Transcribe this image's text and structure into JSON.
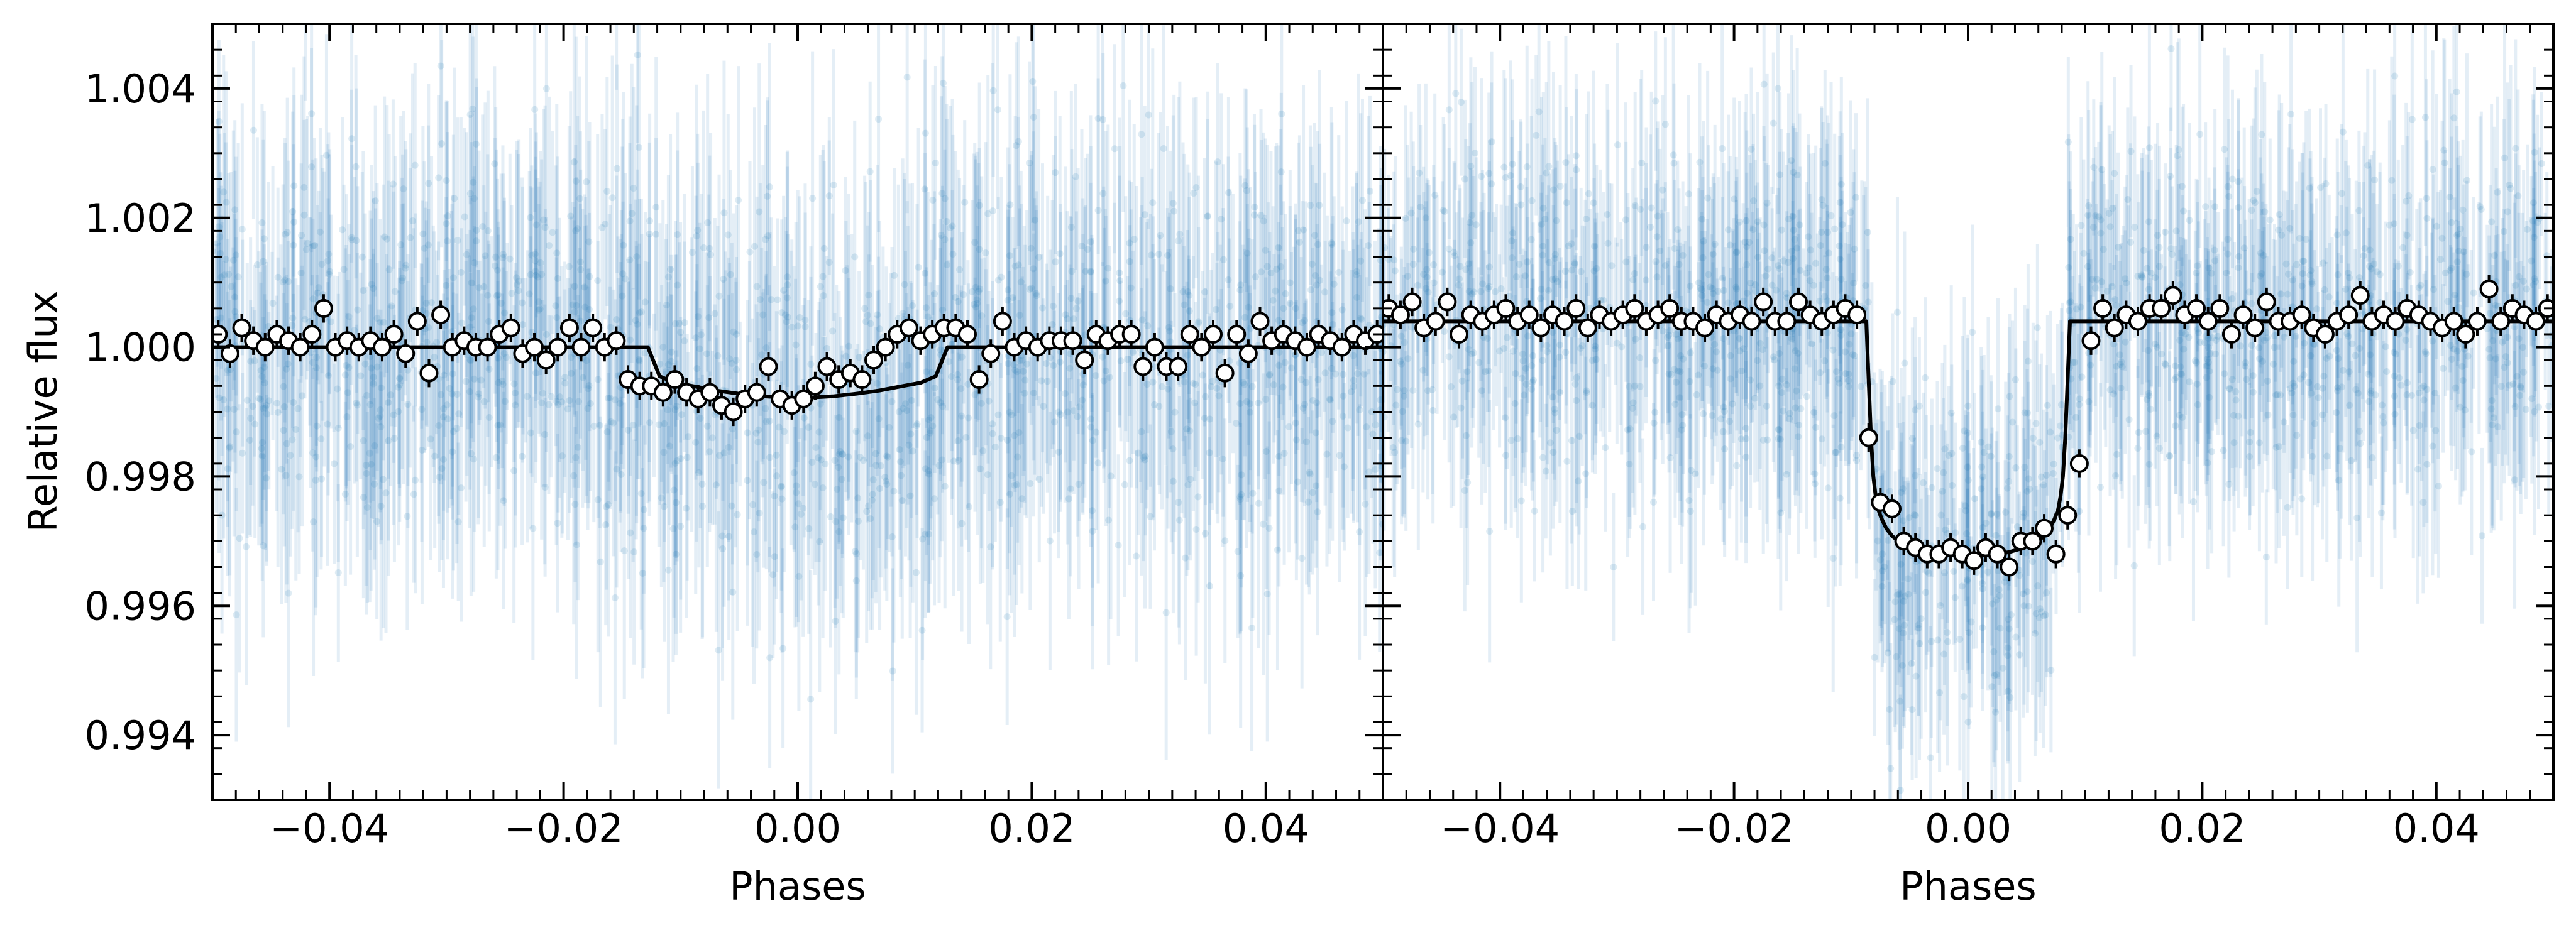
{
  "chart_data": [
    {
      "type": "scatter",
      "panel": "left",
      "xlabel": "Phases",
      "ylabel": "Relative flux",
      "xlim": [
        -0.05,
        0.05
      ],
      "ylim": [
        0.993,
        1.005
      ],
      "x_ticks": [
        -0.04,
        -0.02,
        0.0,
        0.02,
        0.04
      ],
      "x_tick_labels": [
        "−0.04",
        "−0.02",
        "0.00",
        "0.02",
        "0.04"
      ],
      "y_ticks": [
        0.994,
        0.996,
        0.998,
        1.0,
        1.002,
        1.004
      ],
      "y_tick_labels": [
        "0.994",
        "0.996",
        "0.998",
        "1.000",
        "1.002",
        "1.004"
      ],
      "grid": false,
      "raw_points": {
        "color": "#1f77b4",
        "x_range": [
          -0.05,
          0.05
        ],
        "scatter_sigma": 0.0015,
        "count": 1400
      },
      "binned_points": {
        "x": [
          -0.0495,
          -0.0485,
          -0.0475,
          -0.0465,
          -0.0455,
          -0.0445,
          -0.0435,
          -0.0425,
          -0.0415,
          -0.0405,
          -0.0395,
          -0.0385,
          -0.0375,
          -0.0365,
          -0.0355,
          -0.0345,
          -0.0335,
          -0.0325,
          -0.0315,
          -0.0305,
          -0.0295,
          -0.0285,
          -0.0275,
          -0.0265,
          -0.0255,
          -0.0245,
          -0.0235,
          -0.0225,
          -0.0215,
          -0.0205,
          -0.0195,
          -0.0185,
          -0.0175,
          -0.0165,
          -0.0155,
          -0.0145,
          -0.0135,
          -0.0125,
          -0.0115,
          -0.0105,
          -0.0095,
          -0.0085,
          -0.0075,
          -0.0065,
          -0.0055,
          -0.0045,
          -0.0035,
          -0.0025,
          -0.0015,
          -0.0005,
          0.0005,
          0.0015,
          0.0025,
          0.0035,
          0.0045,
          0.0055,
          0.0065,
          0.0075,
          0.0085,
          0.0095,
          0.0105,
          0.0115,
          0.0125,
          0.0135,
          0.0145,
          0.0155,
          0.0165,
          0.0175,
          0.0185,
          0.0195,
          0.0205,
          0.0215,
          0.0225,
          0.0235,
          0.0245,
          0.0255,
          0.0265,
          0.0275,
          0.0285,
          0.0295,
          0.0305,
          0.0315,
          0.0325,
          0.0335,
          0.0345,
          0.0355,
          0.0365,
          0.0375,
          0.0385,
          0.0395,
          0.0405,
          0.0415,
          0.0425,
          0.0435,
          0.0445,
          0.0455,
          0.0465,
          0.0475,
          0.0485,
          0.0495
        ],
        "y": [
          1.0002,
          0.9999,
          1.0003,
          1.0001,
          1.0,
          1.0002,
          1.0001,
          1.0,
          1.0002,
          1.0006,
          1.0,
          1.0001,
          1.0,
          1.0001,
          1.0,
          1.0002,
          0.9999,
          1.0004,
          0.9996,
          1.0005,
          1.0,
          1.0001,
          1.0,
          1.0,
          1.0002,
          1.0003,
          0.9999,
          1.0,
          0.9998,
          1.0,
          1.0003,
          1.0,
          1.0003,
          1.0,
          1.0001,
          0.9995,
          0.9994,
          0.9994,
          0.9993,
          0.9995,
          0.9993,
          0.9992,
          0.9993,
          0.9991,
          0.999,
          0.9992,
          0.9993,
          0.9997,
          0.9992,
          0.9991,
          0.9992,
          0.9994,
          0.9997,
          0.9995,
          0.9996,
          0.9995,
          0.9998,
          1.0,
          1.0002,
          1.0003,
          1.0001,
          1.0002,
          1.0003,
          1.0003,
          1.0002,
          0.9995,
          0.9999,
          1.0004,
          1.0,
          1.0001,
          1.0,
          1.0001,
          1.0001,
          1.0001,
          0.9998,
          1.0002,
          1.0001,
          1.0002,
          1.0002,
          0.9997,
          1.0,
          0.9997,
          0.9997,
          1.0002,
          1.0,
          1.0002,
          0.9996,
          1.0002,
          0.9999,
          1.0004,
          1.0001,
          1.0002,
          1.0001,
          1.0,
          1.0002,
          1.0001,
          1.0,
          1.0002,
          1.0001,
          1.0002
        ]
      },
      "model": {
        "x": [
          -0.05,
          -0.0128,
          -0.0118,
          -0.0105,
          -0.009,
          -0.007,
          -0.005,
          -0.003,
          -0.001,
          0.001,
          0.003,
          0.005,
          0.007,
          0.009,
          0.0105,
          0.0118,
          0.0128,
          0.05
        ],
        "y": [
          1.0,
          1.0,
          0.99955,
          0.99945,
          0.9994,
          0.99933,
          0.99928,
          0.99924,
          0.99922,
          0.99922,
          0.99924,
          0.99928,
          0.99933,
          0.9994,
          0.99945,
          0.99955,
          1.0,
          1.0
        ]
      }
    },
    {
      "type": "scatter",
      "panel": "right",
      "xlabel": "Phases",
      "ylabel": "",
      "xlim": [
        -0.05,
        0.05
      ],
      "ylim": [
        0.993,
        1.005
      ],
      "x_ticks": [
        -0.04,
        -0.02,
        0.0,
        0.02,
        0.04
      ],
      "x_tick_labels": [
        "−0.04",
        "−0.02",
        "0.00",
        "0.02",
        "0.04"
      ],
      "grid": false,
      "raw_points": {
        "color": "#1f77b4",
        "x_range": [
          -0.05,
          0.05
        ],
        "scatter_sigma": 0.0013,
        "count": 1400
      },
      "binned_points": {
        "x": [
          -0.0495,
          -0.0485,
          -0.0475,
          -0.0465,
          -0.0455,
          -0.0445,
          -0.0435,
          -0.0425,
          -0.0415,
          -0.0405,
          -0.0395,
          -0.0385,
          -0.0375,
          -0.0365,
          -0.0355,
          -0.0345,
          -0.0335,
          -0.0325,
          -0.0315,
          -0.0305,
          -0.0295,
          -0.0285,
          -0.0275,
          -0.0265,
          -0.0255,
          -0.0245,
          -0.0235,
          -0.0225,
          -0.0215,
          -0.0205,
          -0.0195,
          -0.0185,
          -0.0175,
          -0.0165,
          -0.0155,
          -0.0145,
          -0.0135,
          -0.0125,
          -0.0115,
          -0.0105,
          -0.0095,
          -0.0085,
          -0.0075,
          -0.0065,
          -0.0055,
          -0.0045,
          -0.0035,
          -0.0025,
          -0.0015,
          -0.0005,
          0.0005,
          0.0015,
          0.0025,
          0.0035,
          0.0045,
          0.0055,
          0.0065,
          0.0075,
          0.0085,
          0.0095,
          0.0105,
          0.0115,
          0.0125,
          0.0135,
          0.0145,
          0.0155,
          0.0165,
          0.0175,
          0.0185,
          0.0195,
          0.0205,
          0.0215,
          0.0225,
          0.0235,
          0.0245,
          0.0255,
          0.0265,
          0.0275,
          0.0285,
          0.0295,
          0.0305,
          0.0315,
          0.0325,
          0.0335,
          0.0345,
          0.0355,
          0.0365,
          0.0375,
          0.0385,
          0.0395,
          0.0405,
          0.0415,
          0.0425,
          0.0435,
          0.0445,
          0.0455,
          0.0465,
          0.0475,
          0.0485,
          0.0495
        ],
        "y": [
          1.0006,
          1.0005,
          1.0007,
          1.0003,
          1.0004,
          1.0007,
          1.0002,
          1.0005,
          1.0004,
          1.0005,
          1.0006,
          1.0004,
          1.0005,
          1.0003,
          1.0005,
          1.0004,
          1.0006,
          1.0003,
          1.0005,
          1.0004,
          1.0005,
          1.0006,
          1.0004,
          1.0005,
          1.0006,
          1.0004,
          1.0004,
          1.0003,
          1.0005,
          1.0004,
          1.0005,
          1.0004,
          1.0007,
          1.0004,
          1.0004,
          1.0007,
          1.0005,
          1.0004,
          1.0005,
          1.0006,
          1.0005,
          0.9986,
          0.9976,
          0.9975,
          0.997,
          0.9969,
          0.9968,
          0.9968,
          0.9969,
          0.9968,
          0.9967,
          0.9969,
          0.9968,
          0.9966,
          0.997,
          0.997,
          0.9972,
          0.9968,
          0.9974,
          0.9982,
          1.0001,
          1.0006,
          1.0003,
          1.0005,
          1.0004,
          1.0006,
          1.0006,
          1.0008,
          1.0005,
          1.0006,
          1.0004,
          1.0006,
          1.0002,
          1.0005,
          1.0003,
          1.0007,
          1.0004,
          1.0004,
          1.0005,
          1.0003,
          1.0002,
          1.0004,
          1.0005,
          1.0008,
          1.0004,
          1.0005,
          1.0004,
          1.0006,
          1.0005,
          1.0004,
          1.0003,
          1.0004,
          1.0002,
          1.0004,
          1.0009,
          1.0004,
          1.0006,
          1.0005,
          1.0004,
          1.0006
        ]
      },
      "model": {
        "x": [
          -0.05,
          -0.0087,
          -0.0085,
          -0.0083,
          -0.0081,
          -0.0079,
          -0.0077,
          -0.0074,
          -0.007,
          -0.0065,
          -0.0058,
          -0.0048,
          -0.0035,
          -0.002,
          0.0,
          0.002,
          0.0035,
          0.0048,
          0.0058,
          0.0065,
          0.007,
          0.0074,
          0.0077,
          0.0079,
          0.0081,
          0.0083,
          0.0085,
          0.0087,
          0.05
        ],
        "y": [
          1.0004,
          1.0004,
          0.9995,
          0.9986,
          0.998,
          0.9977,
          0.9975,
          0.99735,
          0.9972,
          0.99708,
          0.99698,
          0.9969,
          0.99683,
          0.99679,
          0.99677,
          0.99679,
          0.99683,
          0.9969,
          0.99698,
          0.99708,
          0.9972,
          0.99735,
          0.9975,
          0.9977,
          0.998,
          0.9986,
          0.9995,
          1.0004,
          1.0004
        ]
      }
    }
  ]
}
